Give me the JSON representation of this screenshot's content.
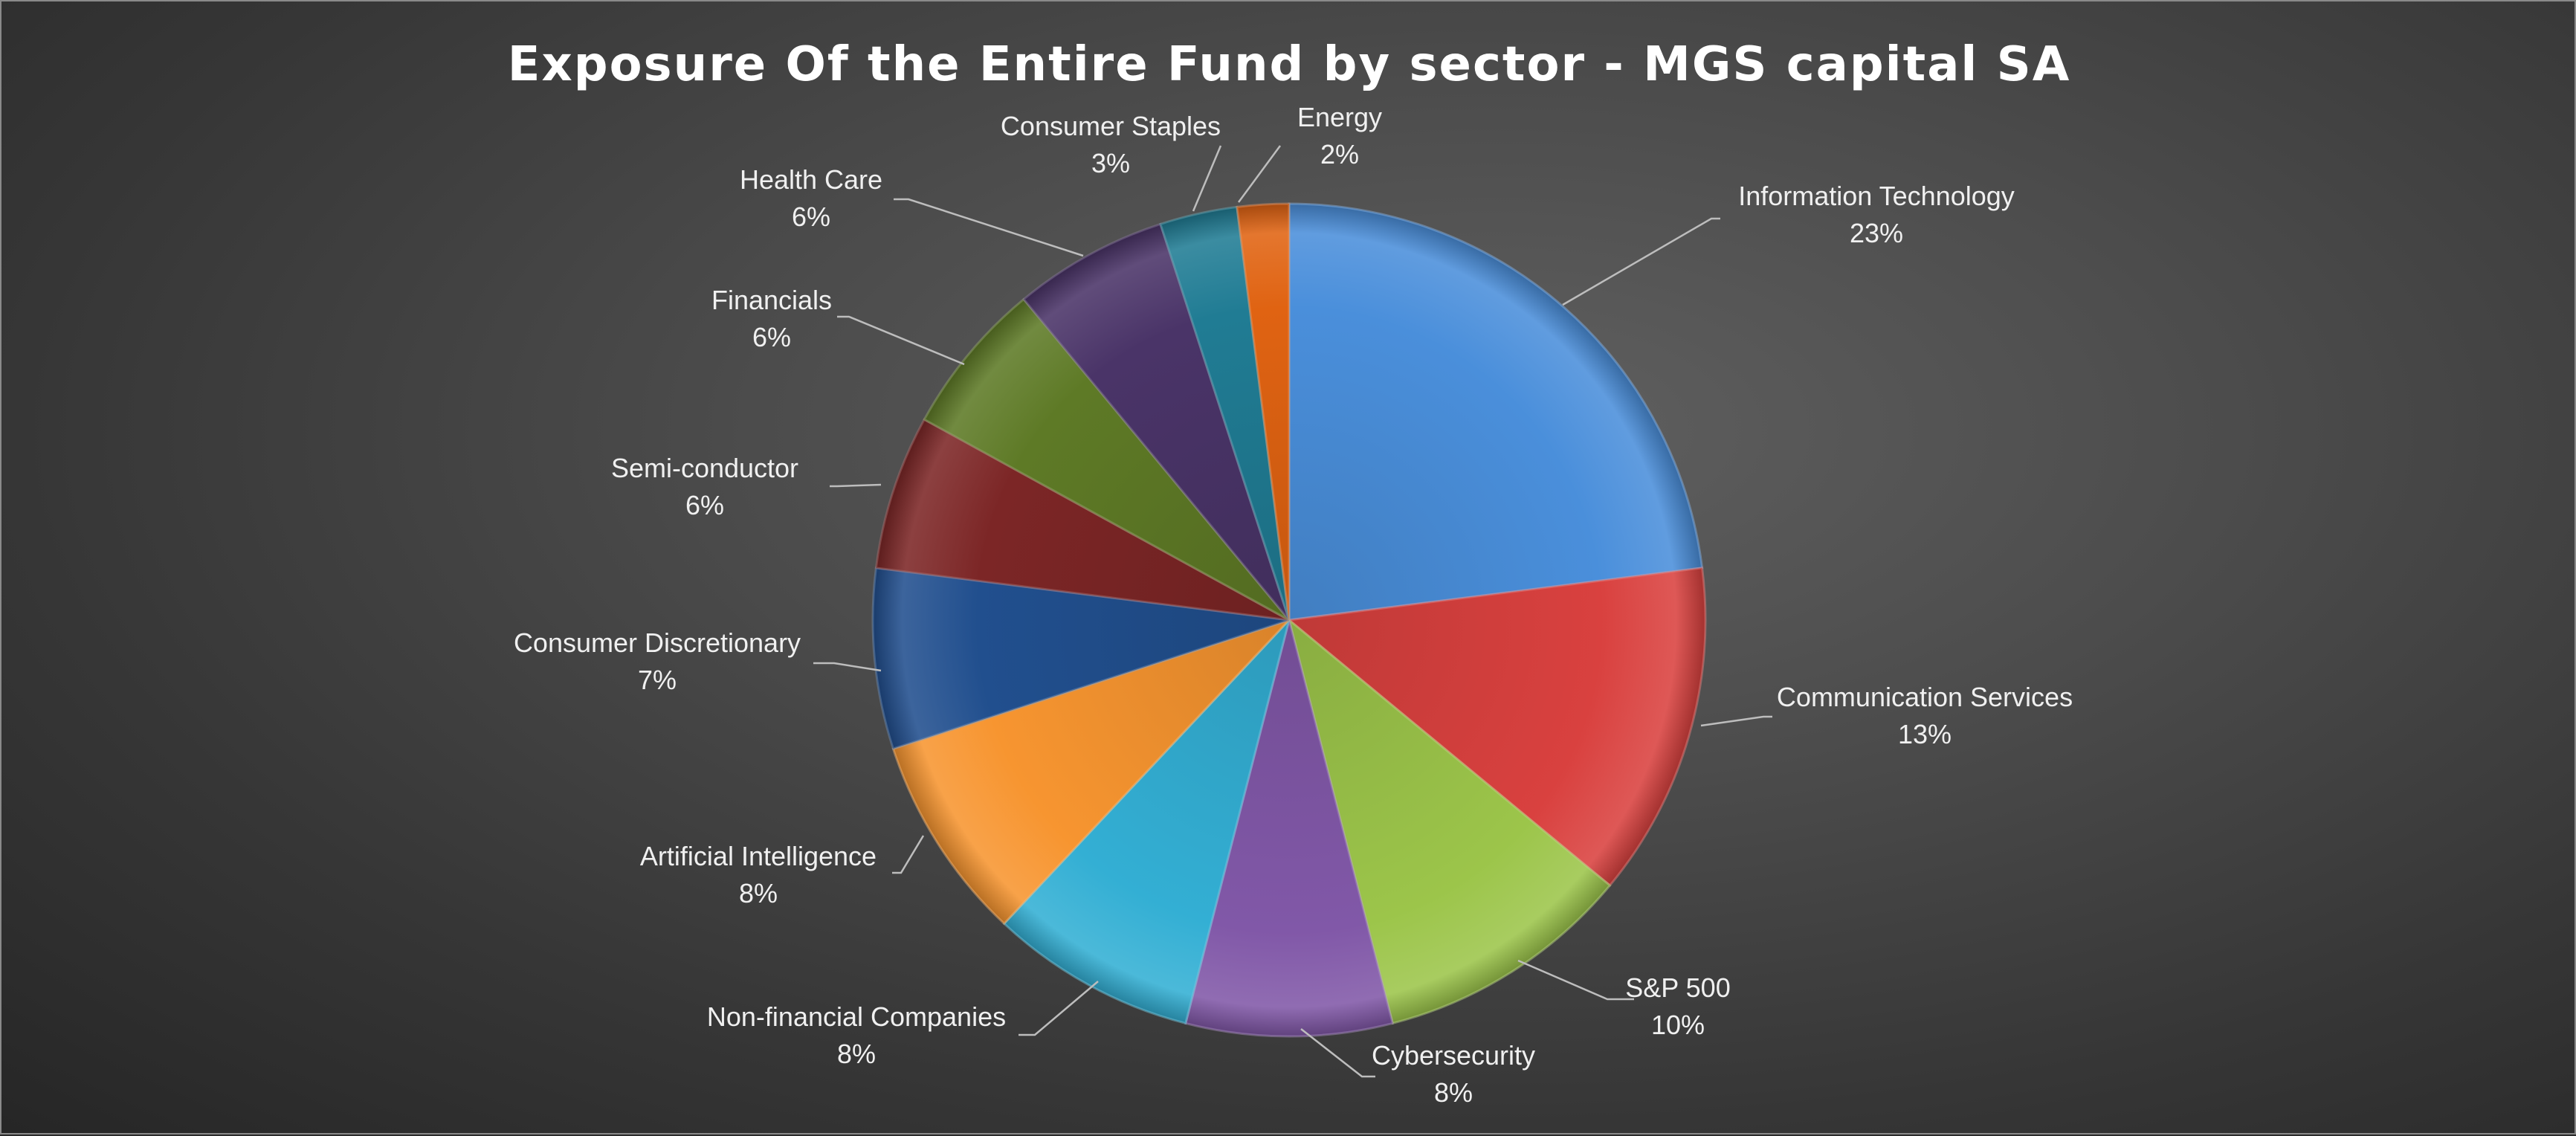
{
  "chart_data": {
    "type": "pie",
    "title": "Exposure Of the Entire Fund by sector - MGS capital SA",
    "start_angle_deg": 0,
    "direction": "clockwise",
    "legend": "none",
    "slices": [
      {
        "label": "Information Technology",
        "value": 23,
        "value_label": "23%",
        "color": "#4a8fdb"
      },
      {
        "label": "Communication Services",
        "value": 13,
        "value_label": "13%",
        "color": "#d9413f"
      },
      {
        "label": "S&P 500",
        "value": 10,
        "value_label": "10%",
        "color": "#9cc54a"
      },
      {
        "label": "Cybersecurity",
        "value": 8,
        "value_label": "8%",
        "color": "#8158a8"
      },
      {
        "label": "Non-financial Companies",
        "value": 8,
        "value_label": "8%",
        "color": "#33afd4"
      },
      {
        "label": "Artificial Intelligence",
        "value": 8,
        "value_label": "8%",
        "color": "#f79530"
      },
      {
        "label": "Consumer Discretionary",
        "value": 7,
        "value_label": "7%",
        "color": "#214f8e"
      },
      {
        "label": "Semi-conductor",
        "value": 6,
        "value_label": "6%",
        "color": "#7c2626"
      },
      {
        "label": "Financials",
        "value": 6,
        "value_label": "6%",
        "color": "#5e7a26"
      },
      {
        "label": "Health Care",
        "value": 6,
        "value_label": "6%",
        "color": "#4a3468"
      },
      {
        "label": "Consumer Staples",
        "value": 3,
        "value_label": "3%",
        "color": "#207c94"
      },
      {
        "label": "Energy",
        "value": 2,
        "value_label": "2%",
        "color": "#e06312"
      }
    ]
  }
}
